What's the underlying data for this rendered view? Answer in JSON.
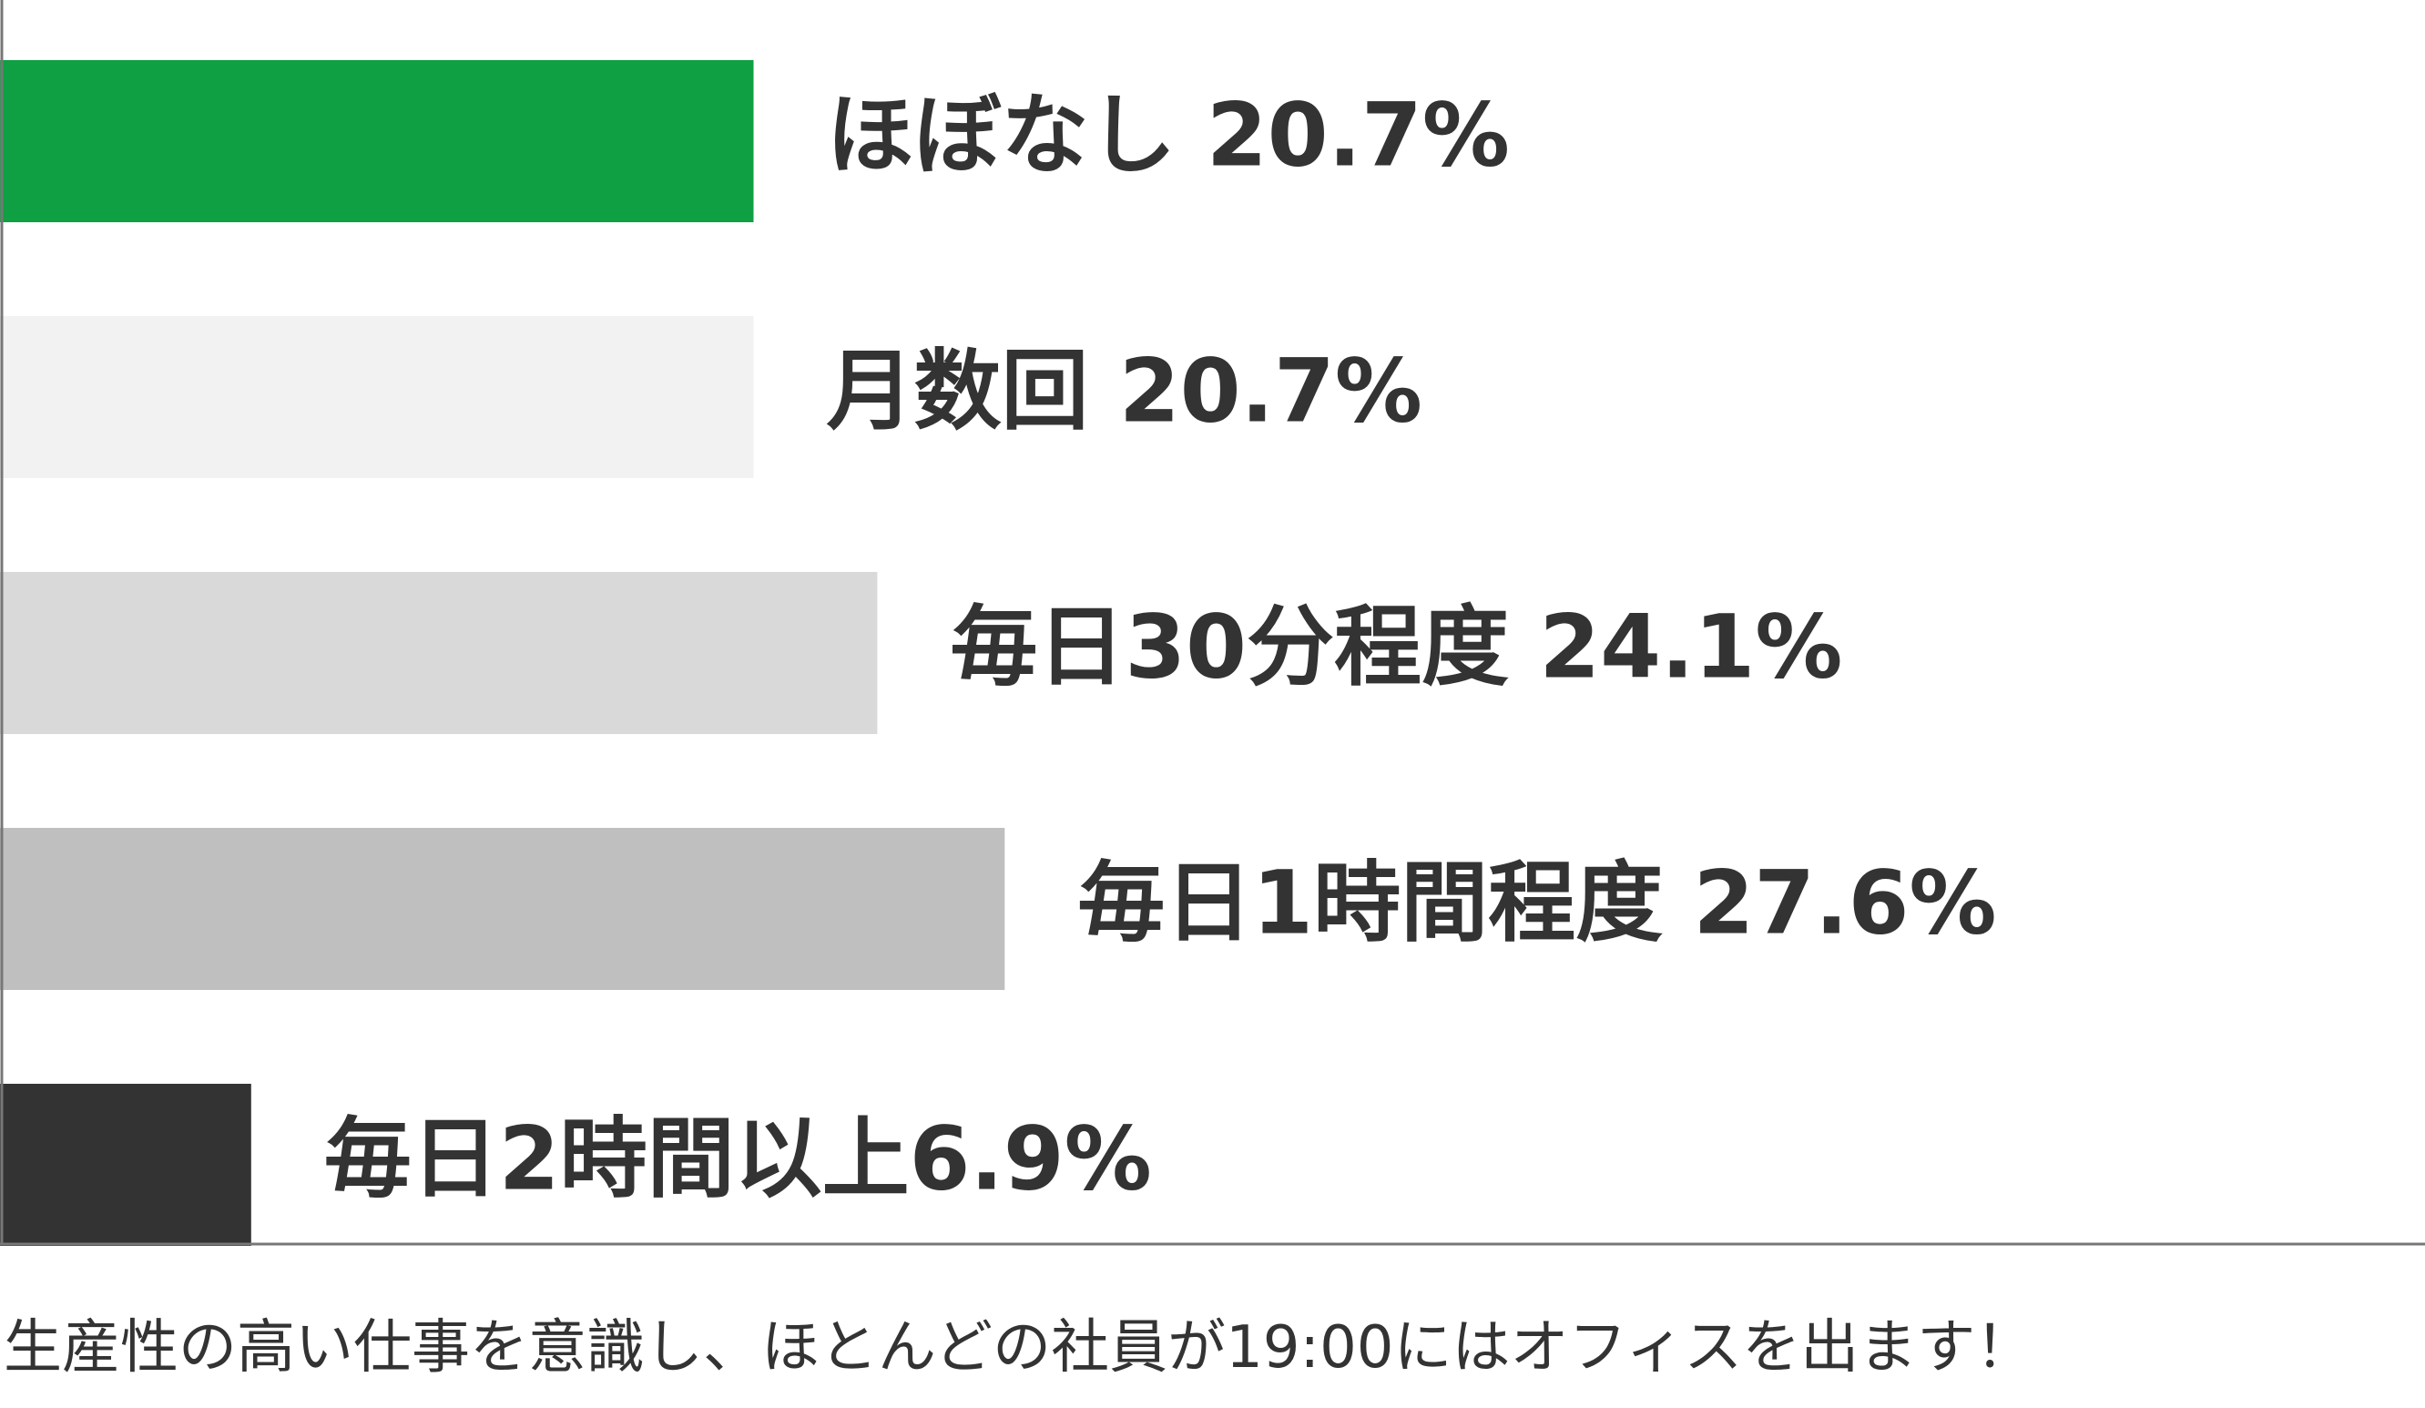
{
  "chart_data": {
    "type": "bar",
    "orientation": "horizontal",
    "categories": [
      "ほぼなし",
      "月数回",
      "毎日30分程度",
      "毎日1時間程度",
      "毎日2時間以上"
    ],
    "values": [
      20.7,
      20.7,
      24.1,
      27.6,
      6.9
    ],
    "unit": "%",
    "labels": [
      "ほぼなし 20.7%",
      "月数回 20.7%",
      "毎日30分程度 24.1%",
      "毎日1時間程度 27.6%",
      "毎日2時間以上6.9%"
    ],
    "colors": [
      "#0ea043",
      "#f2f2f2",
      "#d9d9d9",
      "#bfbfbf",
      "#333333"
    ],
    "xlim": [
      0,
      100
    ],
    "grid": false,
    "legend": "none",
    "title": "",
    "xlabel": "",
    "ylabel": ""
  },
  "caption": "生産性の高い仕事を意識し、ほとんどの社員が19:00にはオフィスを出ます！"
}
